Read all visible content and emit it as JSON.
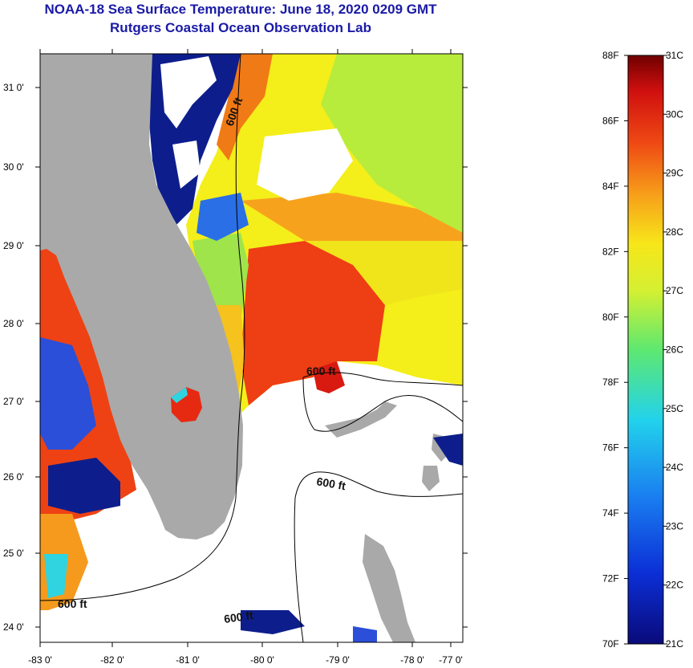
{
  "header": {
    "title": "NOAA-18 Sea Surface Temperature:  June 18, 2020 0209 GMT",
    "subtitle": "Rutgers Coastal Ocean Observation Lab"
  },
  "map": {
    "lon_labels": [
      "-83 0'",
      "-82 0'",
      "-81 0'",
      "-80 0'",
      "-79 0'",
      "-78 0'",
      "-77 0'"
    ],
    "lat_labels": [
      "31 0'",
      "30 0'",
      "29 0'",
      "28 0'",
      "27 0'",
      "26 0'",
      "25 0'",
      "24 0'"
    ],
    "contour_labels": [
      "600 ft",
      "600 ft",
      "600 ft",
      "600 ft",
      "600 ft"
    ],
    "colors": {
      "land": "#a9a9a9",
      "cloud": "#ffffff",
      "warm": "#ee3a12",
      "orange": "#f79a1c",
      "yellow": "#f4ee1a",
      "green": "#a6e84a",
      "cold_mask": "#0d1e8c"
    }
  },
  "colorbar": {
    "f_labels": [
      "88F",
      "86F",
      "84F",
      "82F",
      "80F",
      "78F",
      "76F",
      "74F",
      "72F",
      "70F"
    ],
    "c_labels": [
      "31C",
      "30C",
      "29C",
      "28C",
      "27C",
      "26C",
      "25C",
      "24C",
      "23C",
      "22C",
      "21C"
    ],
    "range_f": [
      70,
      88
    ],
    "range_c": [
      21,
      31
    ]
  }
}
